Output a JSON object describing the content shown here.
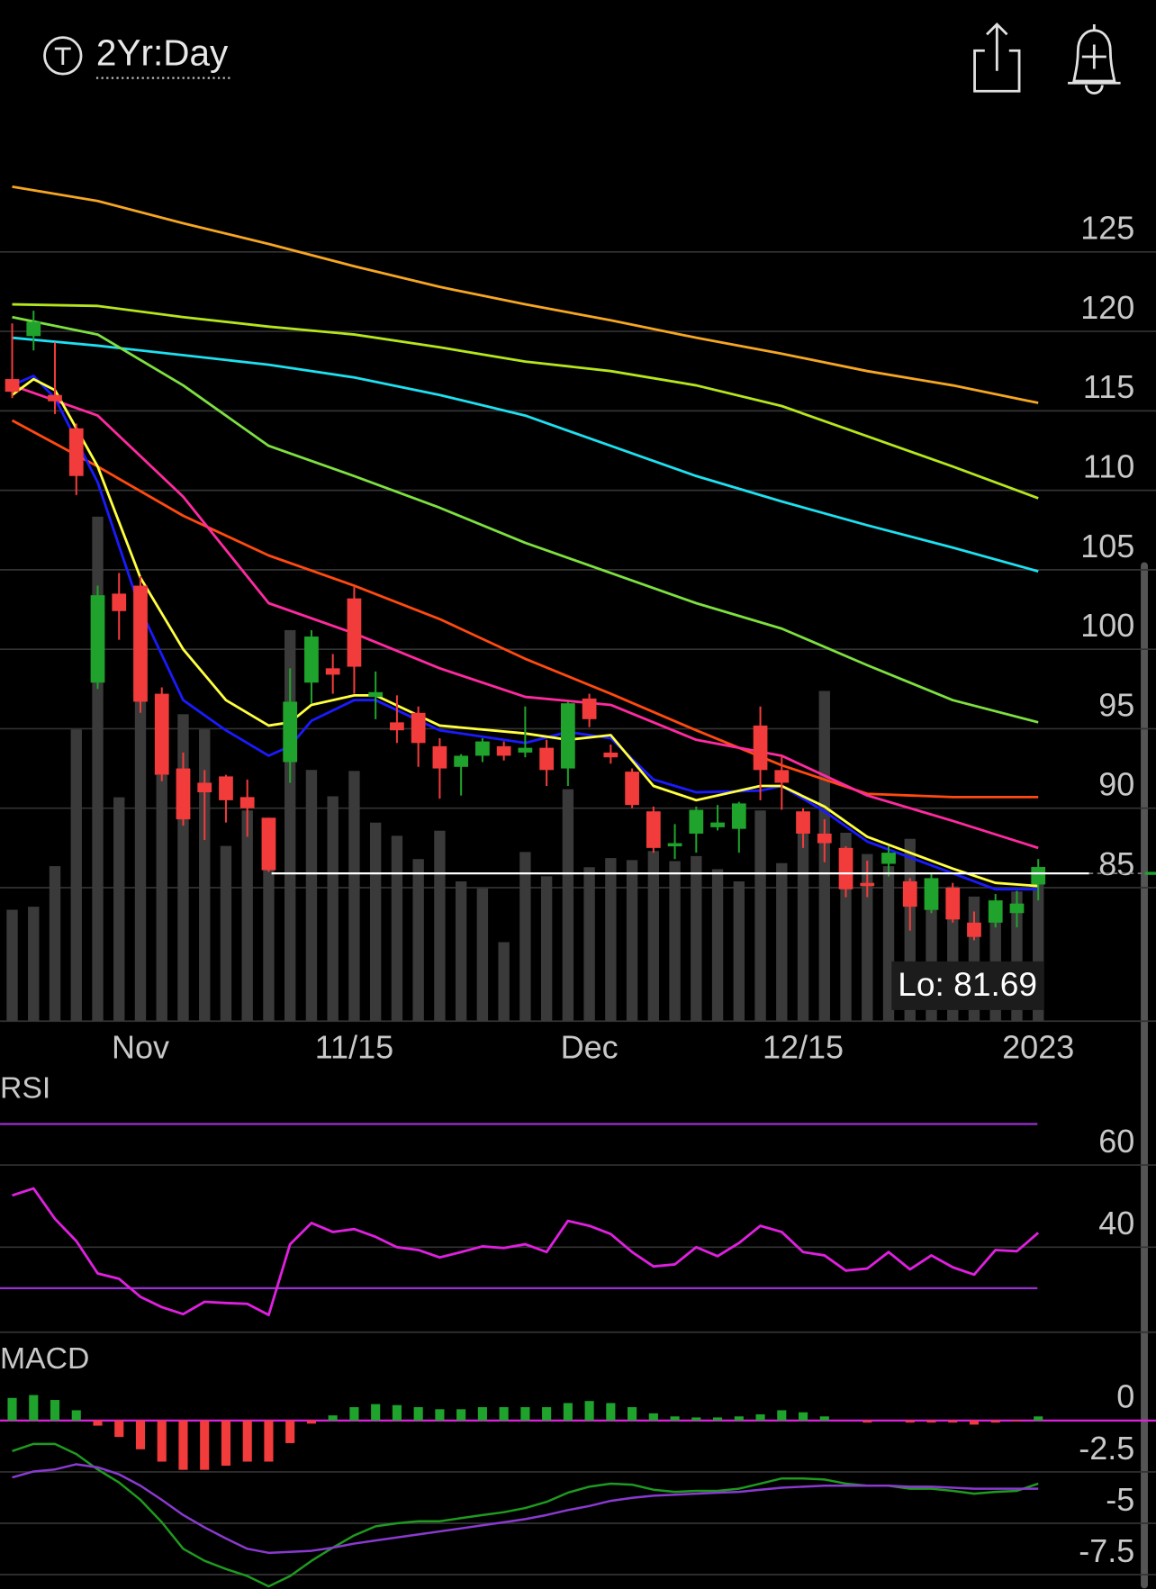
{
  "header": {
    "title": "2Yr:Day"
  },
  "chart_data": [
    {
      "type": "candlestick",
      "categories": [
        null,
        null,
        null,
        null,
        null,
        null,
        "Nov",
        null,
        null,
        null,
        null,
        null,
        null,
        null,
        null,
        null,
        "11/15",
        null,
        null,
        null,
        null,
        null,
        null,
        null,
        null,
        null,
        null,
        "Dec",
        null,
        null,
        null,
        null,
        null,
        null,
        null,
        null,
        null,
        "12/15",
        null,
        null,
        null,
        null,
        null,
        null,
        null,
        null,
        null,
        null,
        "2023"
      ],
      "open": [
        117,
        119.7,
        116.0,
        113.9,
        97.9,
        103.5,
        104.0,
        97.2,
        92.5,
        91.6,
        92.0,
        90.7,
        89.4,
        92.9,
        97.9,
        98.8,
        103.2,
        97.0,
        95.4,
        96.0,
        93.9,
        92.6,
        93.3,
        93.9,
        93.5,
        93.8,
        92.5,
        96.9,
        93.5,
        92.3,
        89.8,
        87.6,
        88.4,
        88.8,
        88.7,
        95.2,
        92.4,
        89.8,
        88.4,
        87.5,
        85.3,
        86.5,
        85.4,
        83.6,
        85.0,
        82.8,
        82.8,
        83.4,
        85.2
      ],
      "high": [
        120.5,
        121.3,
        119.3,
        114.2,
        104.0,
        104.8,
        104.6,
        97.6,
        93.5,
        92.4,
        92.1,
        91.8,
        89.4,
        98.8,
        101.2,
        99.7,
        103.9,
        98.6,
        97.1,
        96.4,
        94.4,
        93.4,
        94.4,
        94.2,
        96.4,
        94.3,
        96.7,
        97.2,
        94.0,
        92.5,
        90.1,
        89.0,
        90.1,
        90.2,
        90.4,
        96.4,
        93.3,
        90.0,
        89.3,
        87.6,
        86.7,
        87.6,
        85.6,
        85.9,
        85.3,
        83.5,
        84.6,
        84.8,
        86.8
      ],
      "low": [
        115.8,
        118.8,
        114.8,
        109.7,
        97.5,
        100.6,
        96.0,
        91.7,
        88.9,
        88.0,
        89.1,
        88.2,
        86.0,
        91.6,
        96.6,
        97.2,
        97.2,
        95.6,
        94.1,
        92.6,
        90.6,
        90.8,
        92.9,
        93.0,
        93.2,
        91.4,
        91.4,
        95.1,
        92.8,
        90.0,
        87.2,
        86.8,
        87.2,
        88.6,
        87.2,
        90.5,
        89.9,
        87.5,
        86.6,
        84.4,
        84.4,
        85.7,
        82.3,
        83.4,
        82.8,
        81.69,
        82.5,
        82.5,
        84.2
      ],
      "close": [
        116.2,
        120.6,
        115.6,
        110.9,
        103.4,
        102.4,
        96.7,
        92.1,
        89.3,
        91.0,
        90.5,
        90.0,
        86.1,
        96.7,
        100.8,
        98.4,
        98.9,
        97.3,
        94.9,
        94.1,
        92.5,
        93.3,
        94.2,
        93.3,
        93.8,
        92.4,
        96.6,
        95.6,
        93.2,
        90.2,
        87.5,
        87.8,
        89.9,
        89.1,
        90.3,
        92.4,
        91.6,
        88.4,
        87.8,
        84.9,
        85.1,
        87.2,
        83.8,
        85.6,
        83.0,
        81.9,
        84.2,
        84.0,
        86.3
      ],
      "volume": [
        110,
        113,
        153,
        288,
        498,
        221,
        318,
        243,
        303,
        288,
        173,
        208,
        158,
        386,
        248,
        222,
        247,
        196,
        183,
        160,
        188,
        138,
        131,
        78,
        167,
        143,
        229,
        152,
        161,
        159,
        168,
        158,
        163,
        150,
        138,
        208,
        156,
        188,
        326,
        186,
        165,
        153,
        180,
        130,
        133,
        123,
        108,
        128,
        138
      ],
      "up_color": "#1fa32c",
      "down_color": "#f23b3b",
      "volume_color": "#3a3a3a",
      "ylim": [
        76.6,
        133.2
      ],
      "yticks": [
        85,
        90,
        95,
        100,
        105,
        110,
        115,
        120,
        125
      ],
      "last_price": 85.9,
      "annotation": "Lo: 81.69",
      "series": [
        {
          "color": "#f5a623",
          "x": [
            0,
            4,
            8,
            12,
            16,
            20,
            24,
            28,
            32,
            36,
            40,
            44,
            48
          ],
          "values": [
            129.1,
            128.2,
            126.8,
            125.5,
            124.1,
            122.8,
            121.7,
            120.7,
            119.6,
            118.6,
            117.5,
            116.6,
            115.5
          ]
        },
        {
          "color": "#b5e61d",
          "x": [
            0,
            4,
            8,
            12,
            16,
            20,
            24,
            28,
            32,
            36,
            40,
            44,
            48
          ],
          "values": [
            121.7,
            121.6,
            120.9,
            120.3,
            119.8,
            119.0,
            118.1,
            117.5,
            116.6,
            115.3,
            113.4,
            111.5,
            109.5
          ]
        },
        {
          "color": "#1ee0f0",
          "x": [
            0,
            4,
            8,
            12,
            16,
            20,
            24,
            28,
            32,
            36,
            40,
            44,
            48
          ],
          "values": [
            119.6,
            119.1,
            118.5,
            117.9,
            117.1,
            116.0,
            114.7,
            112.8,
            110.9,
            109.3,
            107.8,
            106.4,
            104.9
          ]
        },
        {
          "color": "#7ee040",
          "x": [
            0,
            4,
            8,
            12,
            16,
            20,
            24,
            28,
            32,
            36,
            40,
            44,
            48
          ],
          "values": [
            120.9,
            119.8,
            116.6,
            112.8,
            110.9,
            108.9,
            106.7,
            104.8,
            102.9,
            101.3,
            99.0,
            96.8,
            95.4
          ]
        },
        {
          "color": "#ff4a10",
          "x": [
            0,
            4,
            8,
            12,
            16,
            20,
            24,
            28,
            32,
            36,
            40,
            44,
            48
          ],
          "values": [
            114.4,
            111.5,
            108.4,
            105.9,
            104.0,
            101.9,
            99.4,
            97.2,
            94.9,
            92.7,
            90.9,
            90.7,
            90.7
          ]
        },
        {
          "color": "#ff2aa0",
          "x": [
            0,
            4,
            8,
            12,
            16,
            20,
            24,
            28,
            32,
            36,
            40,
            44,
            48
          ],
          "values": [
            116.6,
            114.7,
            109.6,
            102.9,
            101.0,
            98.8,
            97.0,
            96.5,
            94.3,
            93.3,
            90.8,
            89.2,
            87.5
          ]
        },
        {
          "color": "#1a1aff",
          "x": [
            0,
            1,
            2,
            4,
            6,
            8,
            10,
            12,
            13,
            14,
            16,
            17,
            20,
            24,
            26,
            28,
            30,
            32,
            35,
            36,
            38,
            40,
            42,
            44,
            46,
            48
          ],
          "values": [
            116.6,
            117.2,
            115.8,
            110.5,
            102.5,
            96.8,
            94.9,
            93.3,
            93.9,
            95.5,
            96.8,
            96.8,
            94.9,
            94.1,
            94.8,
            94.4,
            91.8,
            91.0,
            91.1,
            91.4,
            89.8,
            87.9,
            86.9,
            85.9,
            84.9,
            84.9
          ]
        },
        {
          "color": "#ffff40",
          "x": [
            0,
            1,
            2,
            4,
            6,
            8,
            10,
            12,
            13,
            14,
            16,
            17,
            20,
            24,
            26,
            28,
            30,
            32,
            35,
            36,
            38,
            40,
            42,
            44,
            46,
            48
          ],
          "values": [
            116.0,
            117.0,
            116.3,
            111.5,
            104.5,
            100.0,
            96.8,
            95.2,
            95.4,
            96.5,
            97.1,
            97.1,
            95.2,
            94.7,
            94.3,
            94.6,
            91.4,
            90.5,
            91.4,
            91.4,
            90.1,
            88.2,
            87.2,
            86.2,
            85.3,
            85.1
          ]
        }
      ]
    },
    {
      "type": "line",
      "title": "RSI",
      "ylim": [
        19.3,
        82.2
      ],
      "yticks": [
        40,
        60
      ],
      "bands": [
        30,
        70
      ],
      "band_color": "#9b30d0",
      "series": [
        {
          "color": "#e020e0",
          "values": [
            52.6,
            54.3,
            46.9,
            41.5,
            33.6,
            32.3,
            27.9,
            25.4,
            23.7,
            26.7,
            26.4,
            26.2,
            23.5,
            40.7,
            45.9,
            43.7,
            44.4,
            42.5,
            40.0,
            39.3,
            37.5,
            38.8,
            40.2,
            39.8,
            40.7,
            38.8,
            46.4,
            45.2,
            43.2,
            38.8,
            35.3,
            35.8,
            40.0,
            37.8,
            41.0,
            45.2,
            43.7,
            38.8,
            38.0,
            34.3,
            34.8,
            38.8,
            34.6,
            38.0,
            35.1,
            33.3,
            39.3,
            39.0,
            43.5
          ]
        }
      ]
    },
    {
      "type": "macd",
      "title": "MACD",
      "ylim": [
        -8.2,
        3.56
      ],
      "yticks": [
        0,
        -2.5,
        -5,
        -7.5
      ],
      "zero_color": "#e020e0",
      "up_color": "#1fa32c",
      "down_color": "#f23b3b",
      "histogram": [
        1.1,
        1.24,
        1.0,
        0.5,
        -0.25,
        -0.8,
        -1.4,
        -2.0,
        -2.4,
        -2.4,
        -2.2,
        -2.0,
        -2.0,
        -1.1,
        -0.15,
        0.25,
        0.65,
        0.8,
        0.75,
        0.65,
        0.55,
        0.55,
        0.65,
        0.65,
        0.65,
        0.65,
        0.85,
        0.95,
        0.85,
        0.65,
        0.35,
        0.2,
        0.15,
        0.15,
        0.2,
        0.3,
        0.5,
        0.4,
        0.2,
        0,
        -0.1,
        0,
        -0.1,
        -0.1,
        -0.1,
        -0.2,
        -0.1,
        -0.05,
        0.2
      ],
      "series": [
        {
          "color": "#1f9a1f",
          "values": [
            -1.49,
            -1.14,
            -1.14,
            -1.63,
            -2.38,
            -3.02,
            -3.86,
            -4.95,
            -6.24,
            -6.83,
            -7.23,
            -7.57,
            -8.07,
            -7.57,
            -6.83,
            -6.19,
            -5.59,
            -5.15,
            -5.0,
            -4.9,
            -4.9,
            -4.75,
            -4.6,
            -4.46,
            -4.26,
            -3.96,
            -3.51,
            -3.22,
            -3.07,
            -3.12,
            -3.37,
            -3.47,
            -3.42,
            -3.42,
            -3.32,
            -3.07,
            -2.82,
            -2.82,
            -2.87,
            -3.07,
            -3.17,
            -3.17,
            -3.32,
            -3.32,
            -3.42,
            -3.56,
            -3.47,
            -3.42,
            -3.07
          ]
        },
        {
          "color": "#8a3ad0",
          "values": [
            -2.77,
            -2.48,
            -2.38,
            -2.13,
            -2.28,
            -2.62,
            -3.17,
            -3.86,
            -4.6,
            -5.2,
            -5.74,
            -6.24,
            -6.44,
            -6.39,
            -6.34,
            -6.19,
            -5.99,
            -5.84,
            -5.69,
            -5.54,
            -5.4,
            -5.25,
            -5.1,
            -4.95,
            -4.8,
            -4.6,
            -4.36,
            -4.16,
            -3.91,
            -3.76,
            -3.66,
            -3.61,
            -3.56,
            -3.51,
            -3.47,
            -3.37,
            -3.27,
            -3.22,
            -3.17,
            -3.17,
            -3.17,
            -3.17,
            -3.22,
            -3.22,
            -3.27,
            -3.32,
            -3.32,
            -3.32,
            -3.32
          ]
        }
      ]
    }
  ]
}
